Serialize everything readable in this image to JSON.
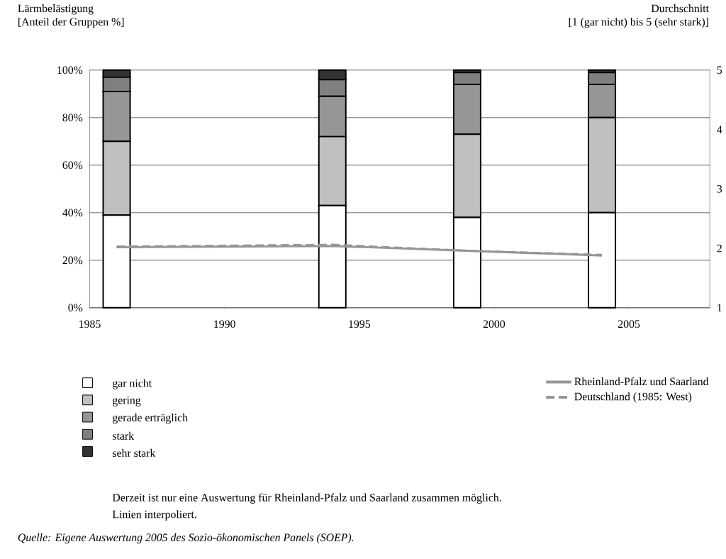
{
  "chart_data": {
    "type": "bar",
    "stacked": true,
    "ylabel": "Lärmbelästigung [Anteil der Gruppen %]",
    "y2label": "Durchschnitt [1 (gar nicht) bis 5 (sehr stark)]",
    "x": [
      1986,
      1994,
      1999,
      2004
    ],
    "xlim": [
      1985,
      2008
    ],
    "xticks": [
      1985,
      1990,
      1995,
      2000,
      2005
    ],
    "ylim": [
      0,
      100
    ],
    "yticks": [
      {
        "value": 0,
        "label": "0%"
      },
      {
        "value": 20,
        "label": "20%"
      },
      {
        "value": 40,
        "label": "40%"
      },
      {
        "value": 60,
        "label": "60%"
      },
      {
        "value": 80,
        "label": "80%"
      },
      {
        "value": 100,
        "label": "100%"
      }
    ],
    "y2lim": [
      1,
      5
    ],
    "y2ticks": [
      1,
      2,
      3,
      4,
      5
    ],
    "grid": "y",
    "legend": "bottom",
    "series": [
      {
        "name": "gar nicht",
        "color": "#ffffff",
        "values": [
          39,
          43,
          38,
          40
        ]
      },
      {
        "name": "gering",
        "color": "#c0c0c0",
        "values": [
          31,
          29,
          35,
          40
        ]
      },
      {
        "name": "gerade erträglich",
        "color": "#969696",
        "values": [
          21,
          17,
          21,
          14
        ]
      },
      {
        "name": "stark",
        "color": "#808080",
        "values": [
          6,
          7,
          5,
          5
        ]
      },
      {
        "name": "sehr stark",
        "color": "#333333",
        "values": [
          3,
          4,
          1,
          1
        ]
      },
      {
        "name": "Rheinland-Pfalz und Saarland",
        "type": "line",
        "axis": "y2",
        "line_style": "solid",
        "color": "#969696",
        "values": [
          2.02,
          2.04,
          1.96,
          1.88
        ]
      },
      {
        "name": "Deutschland (1985: West)",
        "type": "line",
        "axis": "y2",
        "line_style": "dashed",
        "color": "#969696",
        "values": [
          2.03,
          2.06,
          1.96,
          1.89
        ]
      }
    ],
    "annotations": [
      "Derzeit ist nur eine Auswertung für Rheinland-Pfalz und Saarland zusammen möglich.",
      "Linien interpoliert.",
      "Quelle: Eigene Auswertung 2005 des Sozio-ökonomischen Panels (SOEP)."
    ]
  }
}
